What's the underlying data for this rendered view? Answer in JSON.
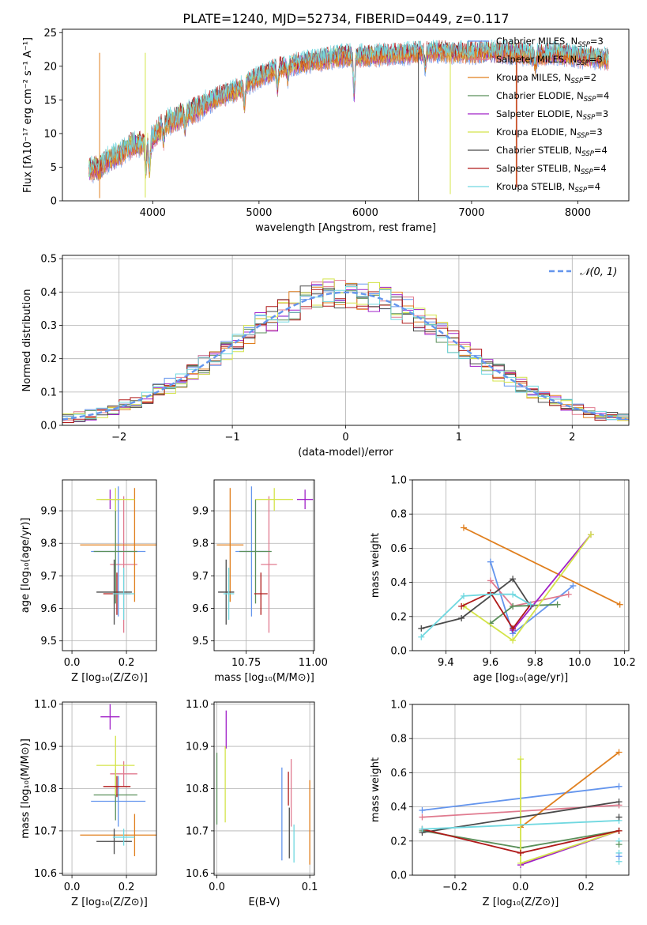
{
  "title": "PLATE=1240, MJD=52734, FIBERID=0449, z=0.117",
  "colors": {
    "chabrier_miles": "#6495ED",
    "salpeter_miles": "#E07A8F",
    "kroupa_miles": "#E07F1E",
    "chabrier_elodie": "#5A8F5A",
    "salpeter_elodie": "#A020C8",
    "kroupa_elodie": "#D4E44A",
    "chabrier_stelib": "#4A4A4A",
    "salpeter_stelib": "#B01A1A",
    "kroupa_stelib": "#70D8E0"
  },
  "chart_data": [
    {
      "id": "spectrum",
      "type": "line",
      "xlabel": "wavelength [Angstrom, rest frame]",
      "ylabel": "Flux [fλ10⁻¹⁷ erg cm⁻² s⁻¹ A⁻¹]",
      "xlim": [
        3150,
        8480
      ],
      "ylim": [
        0,
        25.5
      ],
      "xticks": [
        4000,
        5000,
        6000,
        7000,
        8000
      ],
      "yticks": [
        0,
        5,
        10,
        15,
        20,
        25
      ],
      "grid": false,
      "legend_position": "right",
      "series": [
        {
          "name": "Chabrier MILES, N_SSP=3"
        },
        {
          "name": "Salpeter MILES, N_SSP=3"
        },
        {
          "name": "Kroupa MILES, N_SSP=2"
        },
        {
          "name": "Chabrier ELODIE, N_SSP=4"
        },
        {
          "name": "Salpeter ELODIE, N_SSP=3"
        },
        {
          "name": "Kroupa ELODIE, N_SSP=3"
        },
        {
          "name": "Chabrier STELIB, N_SSP=4"
        },
        {
          "name": "Salpeter STELIB, N_SSP=4"
        },
        {
          "name": "Kroupa STELIB, N_SSP=4"
        }
      ],
      "continuum": {
        "x": [
          3400,
          3500,
          3600,
          3700,
          3800,
          3900,
          4000,
          4100,
          4200,
          4300,
          4400,
          4600,
          4800,
          5000,
          5200,
          5400,
          5600,
          5800,
          6000,
          6200,
          6400,
          6600,
          6800,
          7000,
          7200,
          7400,
          7600,
          7800,
          8000,
          8200,
          8300
        ],
        "y": [
          4.5,
          5.0,
          6.3,
          7.0,
          8.2,
          8.5,
          9.2,
          11.5,
          12.0,
          13.0,
          13.5,
          15.3,
          16.5,
          18.5,
          19.8,
          20.5,
          21.0,
          21.6,
          21.5,
          21.7,
          21.9,
          22.2,
          22.1,
          22.0,
          22.1,
          22.0,
          21.6,
          21.9,
          21.4,
          21.2,
          21.0
        ]
      }
    },
    {
      "id": "residuals",
      "type": "line",
      "xlabel": "(data-model)/error",
      "ylabel": "Normed distribution",
      "xlim": [
        -2.5,
        2.5
      ],
      "ylim": [
        0,
        0.51
      ],
      "xticks": [
        -2,
        -1,
        0,
        1,
        2
      ],
      "yticks": [
        0.0,
        0.1,
        0.2,
        0.3,
        0.4,
        0.5
      ],
      "grid": true,
      "legend": [
        {
          "name": "𝒩(0, 1)",
          "style": "dashed",
          "color": "#6495ED"
        }
      ],
      "bin_width": 0.1
    },
    {
      "id": "age_vs_Z",
      "type": "scatter",
      "xlabel": "Z [log₁₀(Z/Z⊙)]",
      "ylabel": "age  [log₁₀(age/yr)]",
      "xlim": [
        -0.035,
        0.31
      ],
      "ylim": [
        9.47,
        9.995
      ],
      "xticks": [
        0.0,
        0.2
      ],
      "yticks": [
        9.5,
        9.6,
        9.7,
        9.8,
        9.9
      ],
      "grid": true,
      "points": [
        {
          "series": "Chabrier MILES",
          "x": 0.17,
          "xerr": 0.1,
          "y": 9.775,
          "yerr": 0.2
        },
        {
          "series": "Salpeter MILES",
          "x": 0.19,
          "xerr": 0.05,
          "y": 9.735,
          "yerr": 0.21
        },
        {
          "series": "Kroupa MILES",
          "x": 0.23,
          "xerr": 0.2,
          "y": 9.795,
          "yerr": 0.175
        },
        {
          "series": "Chabrier ELODIE",
          "x": 0.16,
          "xerr": 0.08,
          "y": 9.775,
          "yerr": 0.16
        },
        {
          "series": "Salpeter ELODIE",
          "x": 0.14,
          "xerr": 0.035,
          "y": 9.935,
          "yerr": 0.03
        },
        {
          "series": "Kroupa ELODIE",
          "x": 0.16,
          "xerr": 0.07,
          "y": 9.935,
          "yerr": 0.035
        },
        {
          "series": "Chabrier STELIB",
          "x": 0.155,
          "xerr": 0.065,
          "y": 9.65,
          "yerr": 0.1
        },
        {
          "series": "Salpeter STELIB",
          "x": 0.165,
          "xerr": 0.05,
          "y": 9.645,
          "yerr": 0.065
        },
        {
          "series": "Kroupa STELIB",
          "x": 0.19,
          "xerr": 0.04,
          "y": 9.645,
          "yerr": 0.08
        }
      ]
    },
    {
      "id": "age_vs_mass",
      "type": "scatter",
      "xlabel": "mass [log₁₀(M/M⊙)]",
      "ylabel": "",
      "xlim": [
        10.63,
        11.005
      ],
      "ylim": [
        9.47,
        9.995
      ],
      "xticks": [
        10.75,
        11.0
      ],
      "xticklabels": [
        "10.75",
        "11.00"
      ],
      "yticks": [
        9.5,
        9.6,
        9.7,
        9.8,
        9.9
      ],
      "grid": true,
      "points": [
        {
          "series": "Chabrier MILES",
          "x": 10.77,
          "xerr": 0.06,
          "y": 9.775,
          "yerr": 0.2
        },
        {
          "series": "Salpeter MILES",
          "x": 10.835,
          "xerr": 0.03,
          "y": 9.735,
          "yerr": 0.21
        },
        {
          "series": "Kroupa MILES",
          "x": 10.69,
          "xerr": 0.05,
          "y": 9.795,
          "yerr": 0.175
        },
        {
          "series": "Chabrier ELODIE",
          "x": 10.785,
          "xerr": 0.06,
          "y": 9.775,
          "yerr": 0.16
        },
        {
          "series": "Salpeter ELODIE",
          "x": 10.97,
          "xerr": 0.03,
          "y": 9.935,
          "yerr": 0.03
        },
        {
          "series": "Kroupa ELODIE",
          "x": 10.855,
          "xerr": 0.07,
          "y": 9.935,
          "yerr": 0.035
        },
        {
          "series": "Chabrier STELIB",
          "x": 10.675,
          "xerr": 0.03,
          "y": 9.65,
          "yerr": 0.1
        },
        {
          "series": "Salpeter STELIB",
          "x": 10.805,
          "xerr": 0.025,
          "y": 9.645,
          "yerr": 0.065
        },
        {
          "series": "Kroupa STELIB",
          "x": 10.685,
          "xerr": 0.02,
          "y": 9.645,
          "yerr": 0.08
        }
      ]
    },
    {
      "id": "weight_vs_age",
      "type": "line",
      "xlabel": "age  [log₁₀(age/yr)]",
      "ylabel": "mass weight",
      "xlim": [
        9.25,
        10.22
      ],
      "ylim": [
        0,
        1.0
      ],
      "xticks": [
        9.4,
        9.6,
        9.8,
        10.0,
        10.2
      ],
      "yticks": [
        0.0,
        0.2,
        0.4,
        0.6,
        0.8,
        1.0
      ],
      "grid": true,
      "series": [
        {
          "series": "Chabrier MILES",
          "x": [
            9.6,
            9.7,
            9.97
          ],
          "y": [
            0.52,
            0.1,
            0.38
          ]
        },
        {
          "series": "Salpeter MILES",
          "x": [
            9.6,
            9.7,
            9.95
          ],
          "y": [
            0.41,
            0.26,
            0.33
          ]
        },
        {
          "series": "Kroupa MILES",
          "x": [
            9.48,
            10.18
          ],
          "y": [
            0.72,
            0.27
          ]
        },
        {
          "series": "Chabrier ELODIE",
          "x": [
            9.6,
            9.7,
            9.9
          ],
          "y": [
            0.16,
            0.26,
            0.27
          ]
        },
        {
          "series": "Salpeter ELODIE",
          "x": [
            9.7,
            10.05
          ],
          "y": [
            0.12,
            0.68
          ]
        },
        {
          "series": "Kroupa ELODIE",
          "x": [
            9.48,
            9.7,
            10.05
          ],
          "y": [
            0.26,
            0.06,
            0.68
          ]
        },
        {
          "series": "Chabrier STELIB",
          "x": [
            9.29,
            9.47,
            9.7,
            9.78
          ],
          "y": [
            0.13,
            0.19,
            0.42,
            0.26
          ]
        },
        {
          "series": "Salpeter STELIB",
          "x": [
            9.47,
            9.6,
            9.7,
            9.78
          ],
          "y": [
            0.26,
            0.34,
            0.13,
            0.27
          ]
        },
        {
          "series": "Kroupa STELIB",
          "x": [
            9.29,
            9.48,
            9.6,
            9.7,
            9.78
          ],
          "y": [
            0.08,
            0.32,
            0.33,
            0.33,
            0.27
          ]
        }
      ]
    },
    {
      "id": "mass_vs_Z",
      "type": "scatter",
      "xlabel": "Z [log₁₀(Z/Z⊙)]",
      "ylabel": "mass [log₁₀(M/M⊙)]",
      "xlim": [
        -0.035,
        0.31
      ],
      "ylim": [
        10.595,
        11.005
      ],
      "xticks": [
        0.0,
        0.2
      ],
      "yticks": [
        10.6,
        10.7,
        10.8,
        10.9,
        11.0
      ],
      "grid": true,
      "points": [
        {
          "series": "Chabrier MILES",
          "x": 0.17,
          "xerr": 0.1,
          "y": 10.77,
          "yerr": 0.06
        },
        {
          "series": "Salpeter MILES",
          "x": 0.19,
          "xerr": 0.05,
          "y": 10.835,
          "yerr": 0.03
        },
        {
          "series": "Kroupa MILES",
          "x": 0.23,
          "xerr": 0.2,
          "y": 10.69,
          "yerr": 0.05
        },
        {
          "series": "Chabrier ELODIE",
          "x": 0.16,
          "xerr": 0.08,
          "y": 10.785,
          "yerr": 0.06
        },
        {
          "series": "Salpeter ELODIE",
          "x": 0.14,
          "xerr": 0.035,
          "y": 10.97,
          "yerr": 0.03
        },
        {
          "series": "Kroupa ELODIE",
          "x": 0.16,
          "xerr": 0.07,
          "y": 10.855,
          "yerr": 0.07
        },
        {
          "series": "Chabrier STELIB",
          "x": 0.155,
          "xerr": 0.065,
          "y": 10.675,
          "yerr": 0.03
        },
        {
          "series": "Salpeter STELIB",
          "x": 0.165,
          "xerr": 0.05,
          "y": 10.805,
          "yerr": 0.025
        },
        {
          "series": "Kroupa STELIB",
          "x": 0.19,
          "xerr": 0.04,
          "y": 10.685,
          "yerr": 0.02
        }
      ]
    },
    {
      "id": "mass_vs_ebv",
      "type": "scatter",
      "xlabel": "E(B-V)",
      "ylabel": "",
      "xlim": [
        -0.003,
        0.105
      ],
      "ylim": [
        10.595,
        11.005
      ],
      "xticks": [
        0.0,
        0.1
      ],
      "yticks": [
        10.6,
        10.7,
        10.8,
        10.9,
        11.0
      ],
      "grid": true,
      "points": [
        {
          "series": "Chabrier MILES",
          "x": 0.07,
          "y": 10.74,
          "yerr": 0.11
        },
        {
          "series": "Salpeter MILES",
          "x": 0.08,
          "y": 10.79,
          "yerr": 0.08
        },
        {
          "series": "Kroupa MILES",
          "x": 0.1,
          "y": 10.72,
          "yerr": 0.1
        },
        {
          "series": "Chabrier ELODIE",
          "x": 0.0,
          "y": 10.8,
          "yerr": 0.085
        },
        {
          "series": "Salpeter ELODIE",
          "x": 0.01,
          "y": 10.94,
          "yerr": 0.045
        },
        {
          "series": "Kroupa ELODIE",
          "x": 0.009,
          "y": 10.81,
          "yerr": 0.09
        },
        {
          "series": "Chabrier STELIB",
          "x": 0.078,
          "y": 10.695,
          "yerr": 0.06
        },
        {
          "series": "Salpeter STELIB",
          "x": 0.077,
          "y": 10.8,
          "yerr": 0.04
        },
        {
          "series": "Kroupa STELIB",
          "x": 0.083,
          "y": 10.67,
          "yerr": 0.045
        }
      ]
    },
    {
      "id": "weight_vs_Z",
      "type": "line",
      "xlabel": "Z [log₁₀(Z/Z⊙)]",
      "ylabel": "mass weight",
      "xlim": [
        -0.33,
        0.33
      ],
      "ylim": [
        0,
        1.0
      ],
      "xticks": [
        -0.2,
        0.0,
        0.2
      ],
      "xticklabels": [
        "−0.2",
        "0.0",
        "0.2"
      ],
      "yticks": [
        0.0,
        0.2,
        0.4,
        0.6,
        0.8,
        1.0
      ],
      "grid": true,
      "series": [
        {
          "series": "Chabrier MILES",
          "x": [
            -0.3,
            0.3
          ],
          "y": [
            0.38,
            0.52
          ]
        },
        {
          "series": "Salpeter MILES",
          "x": [
            -0.3,
            0.3
          ],
          "y": [
            0.34,
            0.41
          ]
        },
        {
          "series": "Kroupa MILES",
          "x": [
            0.0,
            0.3
          ],
          "y": [
            0.28,
            0.72
          ]
        },
        {
          "series": "Chabrier ELODIE",
          "x": [
            -0.3,
            0.0,
            0.3
          ],
          "y": [
            0.26,
            0.16,
            0.26
          ]
        },
        {
          "series": "Salpeter ELODIE",
          "x": [
            0.0,
            0.3
          ],
          "y": [
            0.06,
            0.26
          ]
        },
        {
          "series": "Kroupa ELODIE",
          "x": [
            0.0,
            0.0,
            0.3
          ],
          "y": [
            0.68,
            0.07,
            0.26
          ]
        },
        {
          "series": "Chabrier STELIB",
          "x": [
            -0.3,
            0.3
          ],
          "y": [
            0.25,
            0.43
          ]
        },
        {
          "series": "Salpeter STELIB",
          "x": [
            -0.3,
            0.0,
            0.3
          ],
          "y": [
            0.27,
            0.13,
            0.26
          ]
        },
        {
          "series": "Kroupa STELIB",
          "x": [
            -0.3,
            0.3
          ],
          "y": [
            0.27,
            0.32
          ]
        }
      ],
      "extra_markers": [
        {
          "series": "Chabrier STELIB",
          "x": 0.3,
          "y": 0.34
        },
        {
          "series": "Kroupa STELIB",
          "x": 0.3,
          "y": 0.2
        },
        {
          "series": "Kroupa STELIB",
          "x": 0.3,
          "y": 0.13
        },
        {
          "series": "Kroupa STELIB",
          "x": 0.3,
          "y": 0.08
        },
        {
          "series": "Chabrier MILES",
          "x": 0.3,
          "y": 0.11
        },
        {
          "series": "Chabrier ELODIE",
          "x": 0.3,
          "y": 0.18
        }
      ]
    }
  ]
}
